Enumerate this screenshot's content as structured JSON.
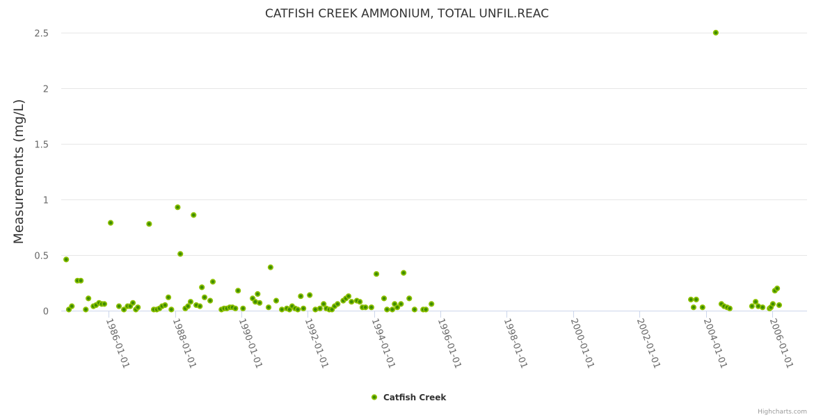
{
  "chart_data": {
    "type": "scatter",
    "title": "CATFISH CREEK AMMONIUM, TOTAL UNFIL.REAC",
    "xlabel": "",
    "ylabel": "Measurements (mg/L)",
    "xlim": [
      1984.57,
      2007.05
    ],
    "ylim": [
      0,
      2.5
    ],
    "yticks": [
      0,
      0.5,
      1,
      1.5,
      2,
      2.5
    ],
    "ytick_labels": [
      "0",
      "0.5",
      "1",
      "1.5",
      "2",
      "2.5"
    ],
    "xticks": [
      1986,
      1988,
      1990,
      1992,
      1994,
      1996,
      1998,
      2000,
      2002,
      2004,
      2006
    ],
    "xtick_labels": [
      "1986-01-01",
      "1988-01-01",
      "1990-01-01",
      "1992-01-01",
      "1994-01-01",
      "1996-01-01",
      "1998-01-01",
      "2000-01-01",
      "2002-01-01",
      "2004-01-01",
      "2006-01-01"
    ],
    "grid": true,
    "legend_position": "bottom-center",
    "credits": "Highcharts.com",
    "series": [
      {
        "name": "Catfish Creek",
        "color": "#7cb500",
        "points": [
          [
            1984.72,
            0.46
          ],
          [
            1984.8,
            0.01
          ],
          [
            1984.89,
            0.04
          ],
          [
            1985.06,
            0.27
          ],
          [
            1985.16,
            0.27
          ],
          [
            1985.31,
            0.01
          ],
          [
            1985.39,
            0.11
          ],
          [
            1985.54,
            0.04
          ],
          [
            1985.62,
            0.05
          ],
          [
            1985.71,
            0.07
          ],
          [
            1985.79,
            0.06
          ],
          [
            1985.87,
            0.06
          ],
          [
            1986.06,
            0.79
          ],
          [
            1986.31,
            0.04
          ],
          [
            1986.46,
            0.01
          ],
          [
            1986.57,
            0.04
          ],
          [
            1986.65,
            0.04
          ],
          [
            1986.73,
            0.07
          ],
          [
            1986.82,
            0.01
          ],
          [
            1986.88,
            0.03
          ],
          [
            1987.22,
            0.78
          ],
          [
            1987.36,
            0.01
          ],
          [
            1987.45,
            0.01
          ],
          [
            1987.53,
            0.02
          ],
          [
            1987.61,
            0.04
          ],
          [
            1987.7,
            0.05
          ],
          [
            1987.8,
            0.12
          ],
          [
            1987.89,
            0.01
          ],
          [
            1988.08,
            0.93
          ],
          [
            1988.16,
            0.51
          ],
          [
            1988.31,
            0.02
          ],
          [
            1988.39,
            0.04
          ],
          [
            1988.47,
            0.08
          ],
          [
            1988.56,
            0.86
          ],
          [
            1988.64,
            0.05
          ],
          [
            1988.75,
            0.04
          ],
          [
            1988.81,
            0.21
          ],
          [
            1988.89,
            0.12
          ],
          [
            1989.06,
            0.09
          ],
          [
            1989.14,
            0.26
          ],
          [
            1989.4,
            0.01
          ],
          [
            1989.48,
            0.02
          ],
          [
            1989.56,
            0.02
          ],
          [
            1989.65,
            0.03
          ],
          [
            1989.73,
            0.03
          ],
          [
            1989.82,
            0.02
          ],
          [
            1989.9,
            0.18
          ],
          [
            1990.05,
            0.02
          ],
          [
            1990.34,
            0.11
          ],
          [
            1990.42,
            0.08
          ],
          [
            1990.49,
            0.15
          ],
          [
            1990.55,
            0.07
          ],
          [
            1990.82,
            0.03
          ],
          [
            1990.88,
            0.39
          ],
          [
            1991.05,
            0.09
          ],
          [
            1991.22,
            0.01
          ],
          [
            1991.37,
            0.02
          ],
          [
            1991.45,
            0.01
          ],
          [
            1991.53,
            0.04
          ],
          [
            1991.62,
            0.02
          ],
          [
            1991.7,
            0.01
          ],
          [
            1991.79,
            0.13
          ],
          [
            1991.87,
            0.02
          ],
          [
            1992.06,
            0.14
          ],
          [
            1992.23,
            0.01
          ],
          [
            1992.37,
            0.02
          ],
          [
            1992.48,
            0.06
          ],
          [
            1992.56,
            0.02
          ],
          [
            1992.65,
            0.01
          ],
          [
            1992.73,
            0.01
          ],
          [
            1992.81,
            0.04
          ],
          [
            1992.9,
            0.06
          ],
          [
            1993.07,
            0.09
          ],
          [
            1993.15,
            0.11
          ],
          [
            1993.23,
            0.13
          ],
          [
            1993.32,
            0.08
          ],
          [
            1993.48,
            0.09
          ],
          [
            1993.57,
            0.08
          ],
          [
            1993.65,
            0.03
          ],
          [
            1993.74,
            0.03
          ],
          [
            1993.92,
            0.03
          ],
          [
            1994.07,
            0.33
          ],
          [
            1994.3,
            0.11
          ],
          [
            1994.39,
            0.01
          ],
          [
            1994.55,
            0.01
          ],
          [
            1994.62,
            0.06
          ],
          [
            1994.7,
            0.03
          ],
          [
            1994.81,
            0.06
          ],
          [
            1994.89,
            0.34
          ],
          [
            1995.06,
            0.11
          ],
          [
            1995.22,
            0.01
          ],
          [
            1995.48,
            0.01
          ],
          [
            1995.56,
            0.01
          ],
          [
            1995.73,
            0.06
          ],
          [
            2003.55,
            0.1
          ],
          [
            2003.63,
            0.03
          ],
          [
            2003.71,
            0.1
          ],
          [
            2003.9,
            0.03
          ],
          [
            2004.3,
            2.5
          ],
          [
            2004.47,
            0.06
          ],
          [
            2004.55,
            0.04
          ],
          [
            2004.64,
            0.03
          ],
          [
            2004.72,
            0.02
          ],
          [
            2005.39,
            0.04
          ],
          [
            2005.5,
            0.08
          ],
          [
            2005.58,
            0.04
          ],
          [
            2005.71,
            0.03
          ],
          [
            2005.92,
            0.02
          ],
          [
            2005.96,
            0.03
          ],
          [
            2006.02,
            0.06
          ],
          [
            2006.08,
            0.18
          ],
          [
            2006.15,
            0.2
          ],
          [
            2006.21,
            0.05
          ]
        ]
      }
    ]
  }
}
